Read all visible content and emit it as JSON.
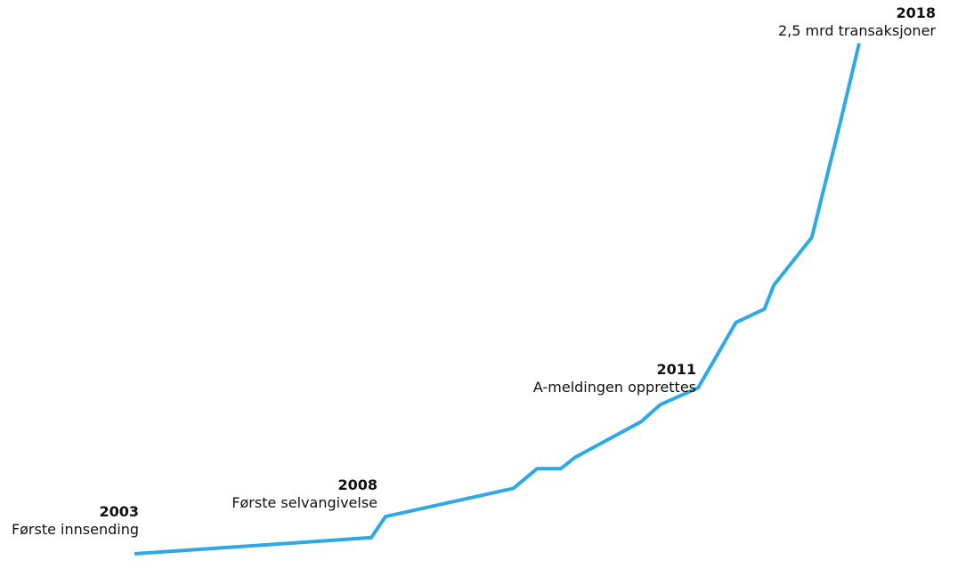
{
  "chart_data": {
    "type": "line",
    "title": "",
    "xlabel": "",
    "ylabel": "",
    "axes_visible": false,
    "grid": false,
    "legend": "none",
    "line_color": "#2EA9E6",
    "series": [
      {
        "points": [
          [
            2003.0,
            0.0
          ],
          [
            2008.0,
            0.023
          ],
          [
            2008.3,
            0.053
          ],
          [
            2011.0,
            0.093
          ],
          [
            2011.5,
            0.121
          ],
          [
            2012.0,
            0.121
          ],
          [
            2012.3,
            0.137
          ],
          [
            2013.7,
            0.188
          ],
          [
            2014.1,
            0.212
          ],
          [
            2014.9,
            0.236
          ],
          [
            2015.7,
            0.329
          ],
          [
            2016.3,
            0.348
          ],
          [
            2016.5,
            0.382
          ],
          [
            2017.3,
            0.45
          ],
          [
            2017.9,
            0.613
          ],
          [
            2018.3,
            0.726
          ]
        ]
      }
    ],
    "annotations": [
      {
        "year": "2003",
        "text": "Første innsending",
        "x": 2003.0,
        "align": "right"
      },
      {
        "year": "2008",
        "text": "Første selvangivelse",
        "x": 2008.0,
        "align": "right"
      },
      {
        "year": "2011",
        "text": "A-meldingen opprettes",
        "x": 2011.0,
        "align": "right"
      },
      {
        "year": "2018",
        "text": "2,5 mrd transaksjoner",
        "x": 2018.0,
        "align": "right"
      }
    ]
  }
}
